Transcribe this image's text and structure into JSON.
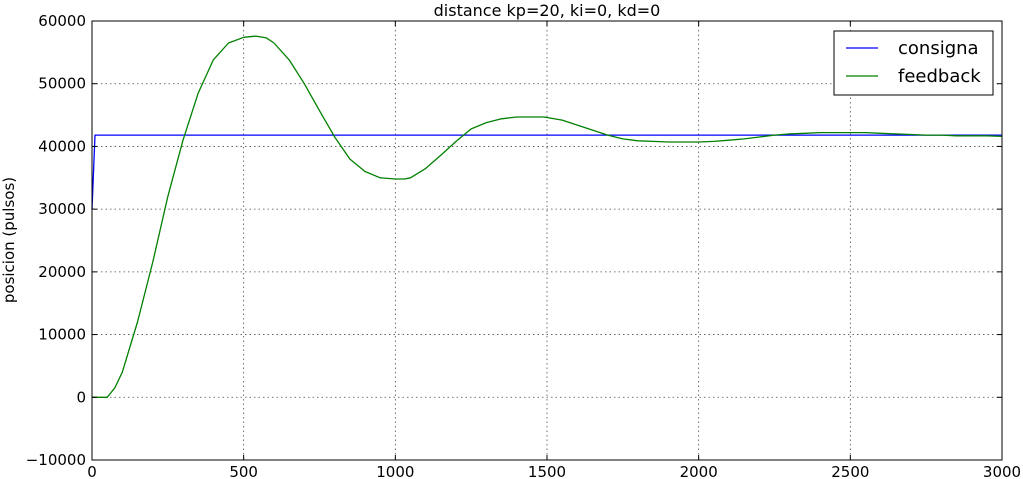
{
  "chart_data": {
    "type": "line",
    "title": "distance kp=20, ki=0, kd=0",
    "xlabel": "",
    "ylabel": "posicion (pulsos)",
    "xlim": [
      0,
      3000
    ],
    "ylim": [
      -10000,
      60000
    ],
    "x_ticks": [
      0,
      500,
      1000,
      1500,
      2000,
      2500,
      3000
    ],
    "y_ticks": [
      -10000,
      0,
      10000,
      20000,
      30000,
      40000,
      50000,
      60000
    ],
    "x_tick_labels": [
      "0",
      "500",
      "1000",
      "1500",
      "2000",
      "2500",
      "3000"
    ],
    "y_tick_labels": [
      "−10000",
      "0",
      "10000",
      "20000",
      "30000",
      "40000",
      "50000",
      "60000"
    ],
    "grid": true,
    "legend_position": "top-right",
    "series": [
      {
        "name": "consigna",
        "color": "#0000ff",
        "x": [
          0,
          10,
          3000
        ],
        "y": [
          30000,
          41800,
          41800
        ]
      },
      {
        "name": "feedback",
        "color": "#008000",
        "x": [
          0,
          25,
          50,
          75,
          100,
          150,
          200,
          250,
          300,
          350,
          400,
          450,
          500,
          540,
          575,
          600,
          650,
          700,
          750,
          800,
          850,
          900,
          950,
          1000,
          1030,
          1050,
          1100,
          1150,
          1200,
          1250,
          1300,
          1350,
          1400,
          1450,
          1490,
          1550,
          1600,
          1650,
          1700,
          1750,
          1800,
          1850,
          1900,
          1950,
          2000,
          2050,
          2100,
          2150,
          2200,
          2250,
          2300,
          2350,
          2400,
          2450,
          2500,
          2550,
          2600,
          2650,
          2700,
          2750,
          2800,
          2850,
          2900,
          2950,
          3000
        ],
        "y": [
          0,
          0,
          0,
          1500,
          4000,
          12000,
          21500,
          32000,
          41000,
          48500,
          53800,
          56500,
          57400,
          57600,
          57300,
          56500,
          53800,
          50000,
          45700,
          41500,
          38000,
          36000,
          35000,
          34800,
          34800,
          35000,
          36500,
          38600,
          40800,
          42800,
          43800,
          44400,
          44700,
          44700,
          44700,
          44200,
          43400,
          42600,
          41800,
          41200,
          40900,
          40800,
          40700,
          40700,
          40700,
          40800,
          41000,
          41200,
          41500,
          41800,
          42000,
          42100,
          42200,
          42200,
          42200,
          42200,
          42100,
          42000,
          41900,
          41800,
          41800,
          41700,
          41700,
          41700,
          41600
        ]
      }
    ]
  }
}
